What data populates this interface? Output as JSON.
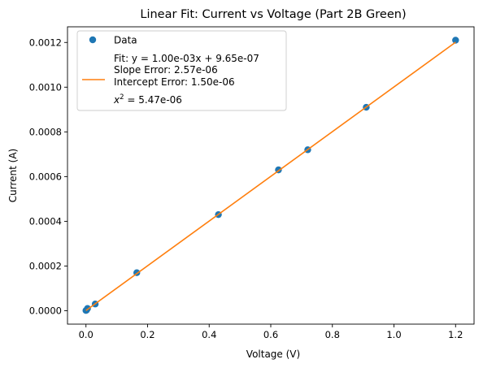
{
  "chart_data": {
    "type": "scatter",
    "title": "Linear Fit: Current vs Voltage (Part 2B Green)",
    "xlabel": "Voltage (V)",
    "ylabel": "Current (A)",
    "xlim": [
      -0.06,
      1.26
    ],
    "ylim": [
      -6e-05,
      0.00127
    ],
    "xticks": [
      0.0,
      0.2,
      0.4,
      0.6,
      0.8,
      1.0,
      1.2
    ],
    "xtick_labels": [
      "0.0",
      "0.2",
      "0.4",
      "0.6",
      "0.8",
      "1.0",
      "1.2"
    ],
    "yticks": [
      0.0,
      0.0002,
      0.0004,
      0.0006,
      0.0008,
      0.001,
      0.0012
    ],
    "ytick_labels": [
      "0.0000",
      "0.0002",
      "0.0004",
      "0.0006",
      "0.0008",
      "0.0010",
      "0.0012"
    ],
    "grid": false,
    "legend_position": "top-left",
    "colors": {
      "data": "#1f77b4",
      "fit": "#ff7f0e"
    },
    "series": [
      {
        "name": "Data",
        "type": "scatter",
        "x": [
          0.0,
          0.002,
          0.005,
          0.03,
          0.165,
          0.43,
          0.625,
          0.72,
          0.91,
          1.2
        ],
        "y": [
          1e-06,
          3e-06,
          1e-05,
          3e-05,
          0.00017,
          0.00043,
          0.00063,
          0.00072,
          0.00091,
          0.00121
        ]
      },
      {
        "name": "Fit: y = 1.00e-03x + 9.65e-07",
        "type": "line",
        "slope": 0.001,
        "intercept": 9.65e-07,
        "x_range": [
          0.0,
          1.2
        ]
      }
    ],
    "legend_lines": [
      "Fit: y = 1.00e-03x + 9.65e-07",
      "Slope Error: 2.57e-06",
      "Intercept Error: 1.50e-06"
    ],
    "chi2_label": {
      "symbol": "x",
      "exponent": "2",
      "value": " = 5.47e-06"
    }
  }
}
